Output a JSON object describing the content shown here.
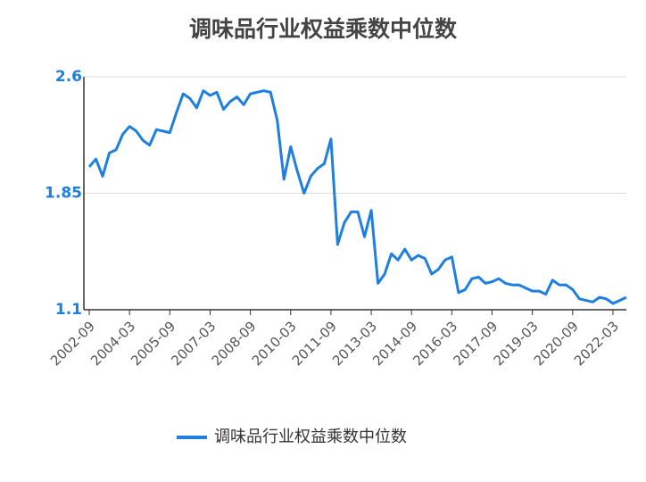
{
  "chart_data": {
    "type": "line",
    "title": "调味品行业权益乘数中位数",
    "categories": [
      "2002-09",
      null,
      null,
      null,
      null,
      null,
      "2004-03",
      null,
      null,
      null,
      null,
      null,
      "2005-09",
      null,
      null,
      null,
      null,
      null,
      "2007-03",
      null,
      null,
      null,
      null,
      null,
      "2008-09",
      null,
      null,
      null,
      null,
      null,
      "2010-03",
      null,
      null,
      null,
      null,
      null,
      "2011-09",
      null,
      null,
      null,
      null,
      null,
      "2013-03",
      null,
      null,
      null,
      null,
      null,
      "2014-09",
      null,
      null,
      null,
      null,
      null,
      "2016-03",
      null,
      null,
      null,
      null,
      null,
      "2017-09",
      null,
      null,
      null,
      null,
      null,
      "2019-03",
      null,
      null,
      null,
      null,
      null,
      "2020-09",
      null,
      null,
      null,
      null,
      null,
      "2022-03",
      null,
      null
    ],
    "series": [
      {
        "name": "调味品行业权益乘数中位数",
        "color": "#1f7fe0",
        "values": [
          2.02,
          2.07,
          1.96,
          2.11,
          2.13,
          2.23,
          2.28,
          2.25,
          2.19,
          2.16,
          2.26,
          2.25,
          2.24,
          2.37,
          2.49,
          2.46,
          2.4,
          2.51,
          2.48,
          2.5,
          2.39,
          2.44,
          2.47,
          2.42,
          2.49,
          2.5,
          2.51,
          2.5,
          2.32,
          1.94,
          2.15,
          1.99,
          1.85,
          1.96,
          2.01,
          2.04,
          2.2,
          1.52,
          1.66,
          1.73,
          1.73,
          1.57,
          1.74,
          1.27,
          1.33,
          1.46,
          1.42,
          1.49,
          1.42,
          1.45,
          1.43,
          1.33,
          1.36,
          1.42,
          1.44,
          1.21,
          1.23,
          1.3,
          1.31,
          1.27,
          1.28,
          1.3,
          1.27,
          1.26,
          1.26,
          1.24,
          1.22,
          1.22,
          1.2,
          1.29,
          1.26,
          1.26,
          1.23,
          1.17,
          1.16,
          1.15,
          1.18,
          1.17,
          1.14,
          1.16,
          1.18
        ]
      }
    ],
    "ylim": [
      1.1,
      2.6
    ],
    "yticks": [
      1.1,
      1.85,
      2.6
    ],
    "grid": true
  }
}
